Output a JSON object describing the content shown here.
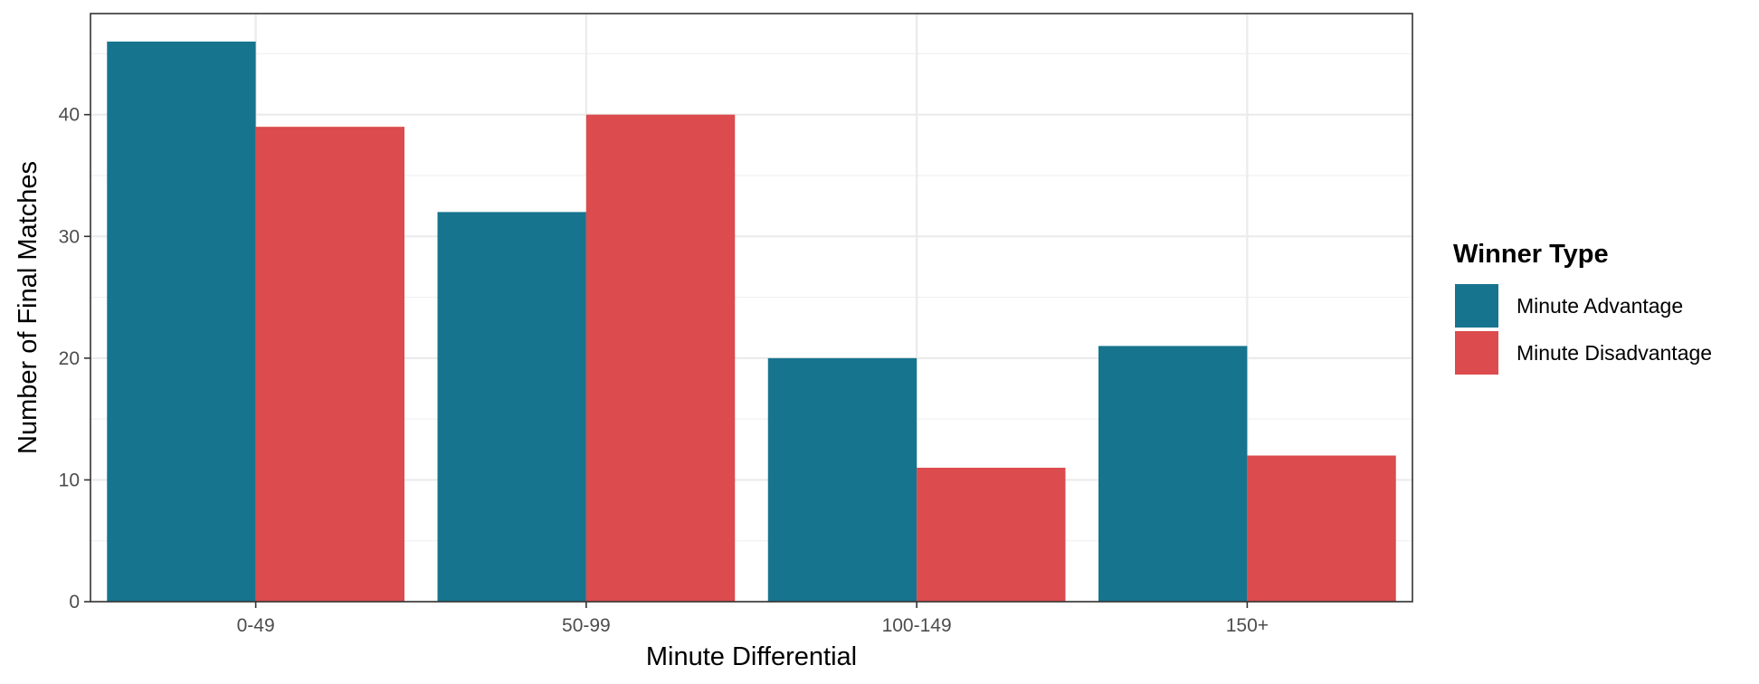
{
  "chart_data": {
    "type": "bar",
    "categories": [
      "0-49",
      "50-99",
      "100-149",
      "150+"
    ],
    "series": [
      {
        "name": "Minute Advantage",
        "values": [
          46,
          32,
          20,
          21
        ],
        "color": "#17748F"
      },
      {
        "name": "Minute Disadvantage",
        "values": [
          39,
          40,
          11,
          12
        ],
        "color": "#DC4B4D"
      }
    ],
    "xlabel": "Minute Differential",
    "ylabel": "Number of Final Matches",
    "ylim": [
      0,
      48.3
    ],
    "yticks": [
      0,
      10,
      20,
      30,
      40
    ],
    "grid": true,
    "legend": {
      "title": "Winner Type",
      "position": "right"
    }
  }
}
